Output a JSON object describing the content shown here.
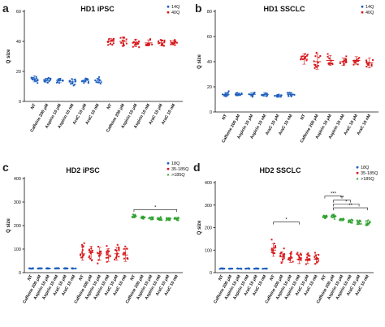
{
  "chart_data": [
    {
      "panel": "a",
      "type": "scatter",
      "title": "HD1 iPSC",
      "ylabel": "Q size",
      "ylim": [
        0,
        60
      ],
      "yticks": [
        0,
        20,
        40,
        60
      ],
      "categories": [
        "NT",
        "Caffeine 200 μM",
        "Aspirin 10 μM",
        "Aspirin 10 nM",
        "AraC 10 μM",
        "AraC 10 nM",
        "NT",
        "Caffeine 200 μM",
        "Aspirin 10 μM",
        "Aspirin 10 nM",
        "AraC 10 μM",
        "AraC 10 nM"
      ],
      "legend_position": "top-right",
      "series": [
        {
          "name": "14Q",
          "color": "#1f5fbf",
          "positions": [
            0,
            1,
            2,
            3,
            4,
            5
          ],
          "means": [
            15,
            14,
            14,
            13,
            14,
            14
          ],
          "spread": [
            4,
            3,
            3,
            3,
            2,
            3
          ]
        },
        {
          "name": "40Q",
          "color": "#d7191c",
          "positions": [
            6,
            7,
            8,
            9,
            10,
            11
          ],
          "means": [
            40,
            40,
            39,
            39,
            39,
            39
          ],
          "spread": [
            4,
            6,
            5,
            4,
            4,
            3
          ]
        }
      ],
      "annotations": []
    },
    {
      "panel": "b",
      "type": "scatter",
      "title": "HD1 SSCLC",
      "ylabel": "Q size",
      "ylim": [
        0,
        80
      ],
      "yticks": [
        0,
        20,
        40,
        60,
        80
      ],
      "categories": [
        "NT",
        "Caffeine 200 μM",
        "Aspirin 10 μM",
        "Aspirin 10 nM",
        "AraC 10 μM",
        "AraC 10 nM",
        "NT",
        "Caffeine 200 μM",
        "Aspirin 10 μM",
        "Aspirin 10 nM",
        "AraC 10 μM",
        "AraC 10 nM"
      ],
      "legend_position": "top-right",
      "series": [
        {
          "name": "14Q",
          "color": "#1f5fbf",
          "positions": [
            0,
            1,
            2,
            3,
            4,
            5
          ],
          "means": [
            14,
            14,
            14,
            14,
            13,
            14
          ],
          "spread": [
            3,
            2,
            3,
            3,
            2,
            3
          ]
        },
        {
          "name": "40Q",
          "color": "#d7191c",
          "positions": [
            6,
            7,
            8,
            9,
            10,
            11
          ],
          "means": [
            42,
            40,
            41,
            40,
            41,
            39
          ],
          "spread": [
            8,
            12,
            8,
            6,
            6,
            8
          ]
        }
      ],
      "annotations": []
    },
    {
      "panel": "c",
      "type": "scatter",
      "title": "HD2 iPSC",
      "ylabel": "Q size",
      "ylim": [
        0,
        400
      ],
      "yticks": [
        0,
        100,
        200,
        300,
        400
      ],
      "categories": [
        "NT",
        "Caffeine 200 μM",
        "Aspirin 10 μM",
        "Aspirin 10 nM",
        "AraC 10 μM",
        "AraC 10 nM",
        "NT",
        "Caffeine 200 μM",
        "Aspirin 10 μM",
        "Aspirin 10 nM",
        "AraC 10 μM",
        "AraC 10 nM",
        "NT",
        "Caffeine 200 μM",
        "Aspirin 10 μM",
        "Aspirin 10 nM",
        "AraC 10 μM",
        "AraC 10 nM"
      ],
      "legend_position": "top-right",
      "series": [
        {
          "name": "18Q",
          "color": "#1f5fbf",
          "positions": [
            0,
            1,
            2,
            3,
            4,
            5
          ],
          "means": [
            18,
            18,
            18,
            18,
            18,
            18
          ],
          "spread": [
            2,
            2,
            2,
            2,
            2,
            2
          ]
        },
        {
          "name": "35-185Q",
          "color": "#d7191c",
          "positions": [
            6,
            7,
            8,
            9,
            10,
            11
          ],
          "means": [
            80,
            85,
            80,
            75,
            80,
            75
          ],
          "spread": [
            55,
            55,
            55,
            55,
            55,
            55
          ]
        },
        {
          "name": ">185Q",
          "color": "#2ca02c",
          "positions": [
            12,
            13,
            14,
            15,
            16,
            17
          ],
          "means": [
            240,
            235,
            232,
            230,
            228,
            230
          ],
          "spread": [
            15,
            12,
            10,
            10,
            12,
            10
          ]
        }
      ],
      "annotations": [
        {
          "text": "*",
          "from": 12,
          "to": 17,
          "y": 268
        }
      ]
    },
    {
      "panel": "d",
      "type": "scatter",
      "title": "HD2 SSCLC",
      "ylabel": "Q size",
      "ylim": [
        0,
        400
      ],
      "yticks": [
        0,
        100,
        200,
        300,
        400
      ],
      "categories": [
        "NT",
        "Caffeine 200 μM",
        "Aspirin 10 μM",
        "Aspirin 10 nM",
        "AraC 10 μM",
        "AraC 10 nM",
        "NT",
        "Caffeine 200 μM",
        "Aspirin 10 μM",
        "Aspirin 10 nM",
        "AraC 10 μM",
        "AraC 10 nM",
        "NT",
        "Caffeine 200 μM",
        "Aspirin 10 μM",
        "Aspirin 10 nM",
        "AraC 10 μM",
        "AraC 10 nM"
      ],
      "legend_position": "top-right",
      "series": [
        {
          "name": "18Q",
          "color": "#1f5fbf",
          "positions": [
            0,
            1,
            2,
            3,
            4,
            5
          ],
          "means": [
            18,
            18,
            18,
            18,
            18,
            18
          ],
          "spread": [
            2,
            2,
            2,
            2,
            2,
            2
          ]
        },
        {
          "name": "35-185Q",
          "color": "#d7191c",
          "positions": [
            6,
            7,
            8,
            9,
            10,
            11
          ],
          "means": [
            100,
            70,
            65,
            60,
            60,
            60
          ],
          "spread": [
            55,
            45,
            40,
            40,
            40,
            40
          ]
        },
        {
          "name": ">185Q",
          "color": "#2ca02c",
          "positions": [
            12,
            13,
            14,
            15,
            16,
            17
          ],
          "means": [
            250,
            252,
            235,
            230,
            225,
            220
          ],
          "spread": [
            10,
            15,
            10,
            10,
            15,
            20
          ]
        }
      ],
      "annotations": [
        {
          "text": "*",
          "from": 6,
          "to": 9,
          "y": 225
        },
        {
          "text": "***",
          "from": 12,
          "to": 14,
          "y": 340
        },
        {
          "text": "**",
          "from": 13,
          "to": 15,
          "y": 322
        },
        {
          "text": "*",
          "from": 13,
          "to": 16,
          "y": 305
        },
        {
          "text": "**",
          "from": 13,
          "to": 17,
          "y": 288
        }
      ]
    }
  ]
}
